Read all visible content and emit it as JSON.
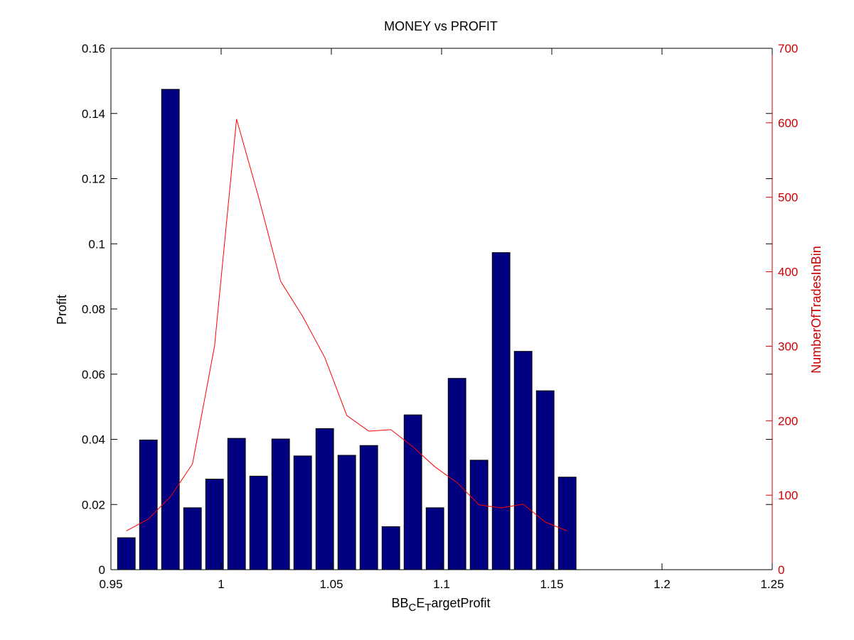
{
  "chart_data": {
    "type": "bar",
    "title": "MONEY vs PROFIT",
    "xlabel": {
      "parts": [
        {
          "text": "BB",
          "shift": "none"
        },
        {
          "text": "C",
          "shift": "sub"
        },
        {
          "text": "E",
          "shift": "none"
        },
        {
          "text": "T",
          "shift": "sub"
        },
        {
          "text": "argetProfit",
          "shift": "none"
        }
      ]
    },
    "ylabel_left": "Profit",
    "ylabel_right": "NumberOfTradesInBin",
    "xlim": [
      0.95,
      1.25
    ],
    "ylim_left": [
      0,
      0.16
    ],
    "ylim_right": [
      0,
      700
    ],
    "x_ticks": [
      "0.95",
      "1",
      "1.05",
      "1.1",
      "1.15",
      "1.2",
      "1.25"
    ],
    "y_left_ticks": [
      "0",
      "0.02",
      "0.04",
      "0.06",
      "0.08",
      "0.1",
      "0.12",
      "0.14",
      "0.16"
    ],
    "y_right_ticks": [
      "0",
      "100",
      "200",
      "300",
      "400",
      "500",
      "600",
      "700"
    ],
    "grid": false,
    "bar_series": {
      "name": "Profit",
      "axis": "left",
      "color": "#000080",
      "x": [
        0.957,
        0.967,
        0.977,
        0.987,
        0.997,
        1.007,
        1.017,
        1.027,
        1.037,
        1.047,
        1.057,
        1.067,
        1.077,
        1.087,
        1.097,
        1.107,
        1.117,
        1.127,
        1.137,
        1.147,
        1.157
      ],
      "values": [
        0.0098,
        0.0398,
        0.1474,
        0.019,
        0.0278,
        0.0403,
        0.0287,
        0.0401,
        0.0349,
        0.0433,
        0.0351,
        0.0381,
        0.0132,
        0.0475,
        0.019,
        0.0587,
        0.0336,
        0.0973,
        0.067,
        0.0549,
        0.0284
      ]
    },
    "line_series": {
      "name": "NumberOfTradesInBin",
      "axis": "right",
      "color": "#ff0000",
      "x": [
        0.957,
        0.967,
        0.977,
        0.987,
        0.997,
        1.007,
        1.017,
        1.027,
        1.037,
        1.047,
        1.057,
        1.067,
        1.077,
        1.087,
        1.097,
        1.107,
        1.117,
        1.127,
        1.137,
        1.147,
        1.157
      ],
      "values": [
        52,
        68,
        98,
        142,
        300,
        605,
        500,
        387,
        340,
        285,
        207,
        186,
        188,
        165,
        138,
        117,
        87,
        83,
        88,
        64,
        52
      ]
    },
    "colors": {
      "axis": "#000000",
      "right_axis": "#cc0000"
    }
  }
}
